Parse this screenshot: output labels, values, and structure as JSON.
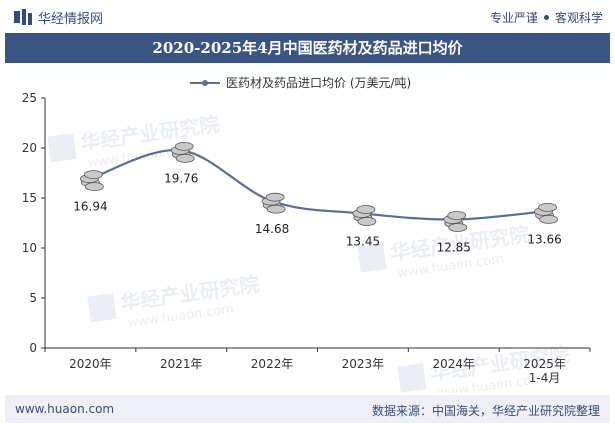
{
  "header": {
    "brand": "华经情报网",
    "slogan_left": "专业严谨",
    "slogan_right": "客观科学"
  },
  "title": "2020-2025年4月中国医药材及药品进口均价",
  "footer": {
    "site": "www.huaon.com",
    "source": "数据来源：中国海关，华经产业研究院整理"
  },
  "watermark": {
    "cn": "华经产业研究院",
    "en": "www.huaon.com"
  },
  "colors": {
    "line": "#5d6f91",
    "title_bg": "#3b5582",
    "axis": "#333333"
  },
  "chart_data": {
    "type": "line",
    "title": "2020-2025年4月中国医药材及药品进口均价",
    "legend": "医药材及药品进口均价 (万美元/吨)",
    "categories": [
      "2020年",
      "2021年",
      "2022年",
      "2023年",
      "2024年",
      "2025年\n1-4月"
    ],
    "values": [
      16.94,
      19.76,
      14.68,
      13.45,
      12.85,
      13.66
    ],
    "labels": [
      "16.94",
      "19.76",
      "14.68",
      "13.45",
      "12.85",
      "13.66"
    ],
    "ylim": [
      0,
      25
    ],
    "yticks": [
      0,
      5,
      10,
      15,
      20,
      25
    ],
    "xlabel": "",
    "ylabel": ""
  }
}
